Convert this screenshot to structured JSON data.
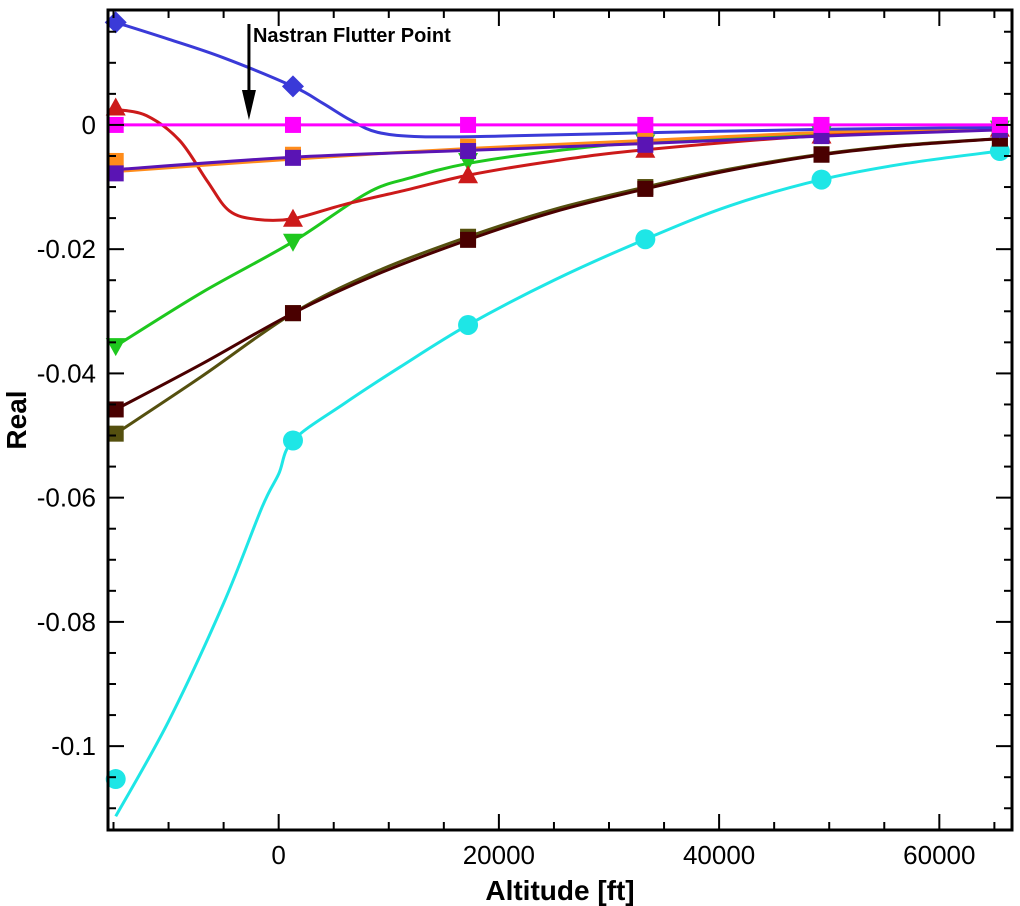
{
  "chart_data": {
    "type": "line",
    "xlabel": "Altitude [ft]",
    "ylabel": "Real",
    "xlim": [
      -15500,
      66600
    ],
    "ylim": [
      -0.1135,
      0.0185
    ],
    "x_ticks": [
      0,
      20000,
      40000,
      60000
    ],
    "x_tick_labels": [
      "0",
      "20000",
      "40000",
      "60000"
    ],
    "y_ticks": [
      0,
      -0.02,
      -0.04,
      -0.06,
      -0.08,
      -0.1
    ],
    "y_tick_labels": [
      "0",
      "-0.02",
      "-0.04",
      "-0.06",
      "-0.08",
      "-0.1"
    ],
    "grid": false,
    "annotation": {
      "text": "Nastran Flutter Point",
      "x": -2700
    },
    "marker_x": [
      -14800,
      1300,
      17200,
      33300,
      49300,
      65500
    ],
    "series": [
      {
        "color": "#3a3ad8",
        "marker": "diamond",
        "markers": [
          [
            -14800,
            0.0165
          ],
          [
            1300,
            0.0062
          ]
        ],
        "curve": [
          [
            -14800,
            0.0165
          ],
          [
            -10000,
            0.0138
          ],
          [
            -5000,
            0.0108
          ],
          [
            1300,
            0.0062
          ],
          [
            4000,
            0.0035
          ],
          [
            6500,
            0.0008
          ],
          [
            9000,
            -0.0012
          ],
          [
            13000,
            -0.0019
          ],
          [
            20000,
            -0.0018
          ],
          [
            35000,
            -0.0012
          ],
          [
            50000,
            -0.0007
          ],
          [
            65500,
            -0.0004
          ]
        ]
      },
      {
        "color": "#cc1a1a",
        "marker": "triangle-up",
        "markers": [
          [
            -14800,
            0.0028
          ],
          [
            1300,
            -0.0151
          ],
          [
            17200,
            -0.0081
          ],
          [
            33300,
            -0.004
          ],
          [
            49300,
            -0.0017
          ],
          [
            65500,
            -0.0006
          ]
        ],
        "curve": [
          [
            -14800,
            0.0025
          ],
          [
            -12000,
            0.0015
          ],
          [
            -9000,
            -0.0025
          ],
          [
            -6500,
            -0.009
          ],
          [
            -4500,
            -0.0138
          ],
          [
            -2000,
            -0.0152
          ],
          [
            1300,
            -0.0151
          ],
          [
            6000,
            -0.0128
          ],
          [
            12000,
            -0.0103
          ],
          [
            17200,
            -0.0081
          ],
          [
            25000,
            -0.0058
          ],
          [
            33300,
            -0.004
          ],
          [
            49300,
            -0.0017
          ],
          [
            65500,
            -0.0006
          ]
        ]
      },
      {
        "color": "#ff00ff",
        "marker": "square",
        "markers": [
          [
            -14800,
            0.0
          ],
          [
            1300,
            0.0
          ],
          [
            17200,
            0.0
          ],
          [
            33300,
            0.0
          ],
          [
            49300,
            0.0
          ],
          [
            65500,
            0.0
          ]
        ],
        "curve": [
          [
            -14800,
            0.0
          ],
          [
            65500,
            0.0
          ]
        ]
      },
      {
        "color": "#ff8c1a",
        "marker": "square",
        "markers": [
          [
            -14800,
            -0.0058
          ],
          [
            1300,
            -0.0048
          ],
          [
            17200,
            -0.0035
          ],
          [
            33300,
            -0.0023
          ],
          [
            49300,
            -0.0012
          ],
          [
            65500,
            -0.0004
          ]
        ],
        "curve": [
          [
            -14800,
            -0.0075
          ],
          [
            1300,
            -0.0055
          ],
          [
            17200,
            -0.0038
          ],
          [
            33300,
            -0.0025
          ],
          [
            49300,
            -0.0012
          ],
          [
            65500,
            -0.0004
          ]
        ]
      },
      {
        "color": "#5a14b4",
        "marker": "square",
        "markers": [
          [
            -14800,
            -0.0078
          ],
          [
            1300,
            -0.0053
          ],
          [
            17200,
            -0.0042
          ],
          [
            33300,
            -0.0032
          ],
          [
            49300,
            -0.0018
          ],
          [
            65500,
            -0.0008
          ]
        ],
        "curve": [
          [
            -14800,
            -0.0072
          ],
          [
            1300,
            -0.0052
          ],
          [
            17200,
            -0.0041
          ],
          [
            33300,
            -0.003
          ],
          [
            49300,
            -0.0018
          ],
          [
            65500,
            -0.0008
          ]
        ]
      },
      {
        "color": "#1ec81e",
        "marker": "triangle-down",
        "markers": [
          [
            -14800,
            -0.0356
          ],
          [
            1300,
            -0.0188
          ],
          [
            17200,
            -0.0058
          ],
          [
            33300,
            -0.0028
          ],
          [
            49300,
            -0.0015
          ],
          [
            65500,
            -0.0006
          ]
        ],
        "curve": [
          [
            -14800,
            -0.0356
          ],
          [
            -7000,
            -0.027
          ],
          [
            1300,
            -0.0188
          ],
          [
            8000,
            -0.011
          ],
          [
            12000,
            -0.0085
          ],
          [
            17200,
            -0.0062
          ],
          [
            25000,
            -0.0042
          ],
          [
            33300,
            -0.0028
          ],
          [
            49300,
            -0.0015
          ],
          [
            65500,
            -0.0006
          ]
        ]
      },
      {
        "color": "#4a0000",
        "marker": "square",
        "markers": [
          [
            -14800,
            -0.0458
          ],
          [
            1300,
            -0.0303
          ],
          [
            17200,
            -0.0185
          ],
          [
            33300,
            -0.0103
          ],
          [
            49300,
            -0.0048
          ],
          [
            65500,
            -0.0022
          ]
        ],
        "curve": [
          [
            -14800,
            -0.0458
          ],
          [
            -7000,
            -0.0385
          ],
          [
            1300,
            -0.0303
          ],
          [
            9000,
            -0.024
          ],
          [
            17200,
            -0.0185
          ],
          [
            25000,
            -0.014
          ],
          [
            33300,
            -0.0103
          ],
          [
            41000,
            -0.0073
          ],
          [
            49300,
            -0.0048
          ],
          [
            57000,
            -0.0033
          ],
          [
            65500,
            -0.0022
          ]
        ]
      },
      {
        "color": "#55500f",
        "marker": "square",
        "markers": [
          [
            -14800,
            -0.0497
          ],
          [
            1300,
            -0.0303
          ],
          [
            17200,
            -0.018
          ],
          [
            33300,
            -0.01
          ],
          [
            49300,
            -0.0047
          ],
          [
            65500,
            -0.0022
          ]
        ],
        "curve": [
          [
            -14800,
            -0.0497
          ],
          [
            -7000,
            -0.0405
          ],
          [
            1300,
            -0.0303
          ],
          [
            9000,
            -0.0235
          ],
          [
            17200,
            -0.018
          ],
          [
            25000,
            -0.0136
          ],
          [
            33300,
            -0.01
          ],
          [
            41000,
            -0.0071
          ],
          [
            49300,
            -0.0047
          ],
          [
            57000,
            -0.0032
          ],
          [
            65500,
            -0.0022
          ]
        ]
      },
      {
        "color": "#1ee6e6",
        "marker": "circle",
        "markers": [
          [
            -14800,
            -0.1053
          ],
          [
            1300,
            -0.0508
          ],
          [
            17200,
            -0.0322
          ],
          [
            33300,
            -0.0184
          ],
          [
            49300,
            -0.0088
          ],
          [
            65500,
            -0.0042
          ]
        ],
        "curve": [
          [
            -14800,
            -0.1113
          ],
          [
            -10000,
            -0.096
          ],
          [
            -5000,
            -0.077
          ],
          [
            -1500,
            -0.0615
          ],
          [
            0,
            -0.0562
          ],
          [
            1300,
            -0.0508
          ],
          [
            6000,
            -0.0448
          ],
          [
            11000,
            -0.039
          ],
          [
            17200,
            -0.0322
          ],
          [
            25000,
            -0.025
          ],
          [
            33300,
            -0.0184
          ],
          [
            41000,
            -0.013
          ],
          [
            49300,
            -0.0088
          ],
          [
            57000,
            -0.0062
          ],
          [
            65500,
            -0.0042
          ]
        ]
      }
    ]
  }
}
